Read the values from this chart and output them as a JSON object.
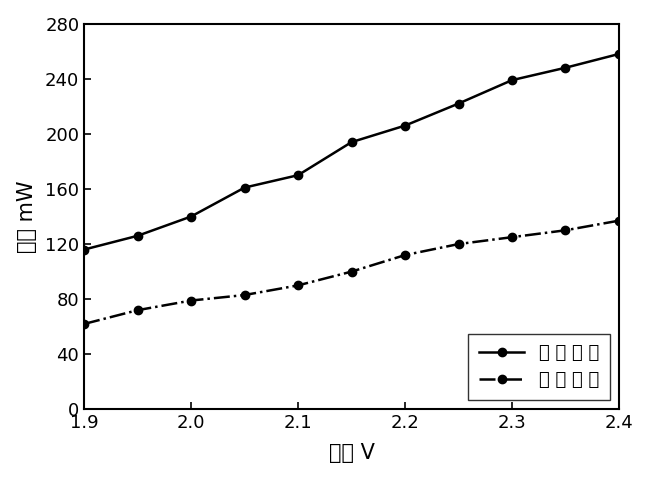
{
  "input_x": [
    1.9,
    1.95,
    2.0,
    2.05,
    2.1,
    2.15,
    2.2,
    2.25,
    2.3,
    2.35,
    2.4
  ],
  "input_y": [
    116,
    126,
    140,
    161,
    170,
    194,
    206,
    222,
    239,
    248,
    258
  ],
  "output_x": [
    1.9,
    1.95,
    2.0,
    2.05,
    2.1,
    2.15,
    2.2,
    2.25,
    2.3,
    2.35,
    2.4
  ],
  "output_y": [
    62,
    72,
    79,
    83,
    90,
    100,
    112,
    120,
    125,
    130,
    137
  ],
  "xlabel": "电压 V",
  "ylabel": "功率 mW",
  "legend_input": "输 入 光 强",
  "legend_output": "输 出 光 强",
  "xlim": [
    1.9,
    2.4
  ],
  "ylim": [
    0,
    280
  ],
  "yticks": [
    0,
    40,
    80,
    120,
    160,
    200,
    240,
    280
  ],
  "xticks": [
    1.9,
    2.0,
    2.1,
    2.2,
    2.3,
    2.4
  ],
  "line_color": "#000000",
  "marker_color": "#000000",
  "bg_color": "#ffffff"
}
